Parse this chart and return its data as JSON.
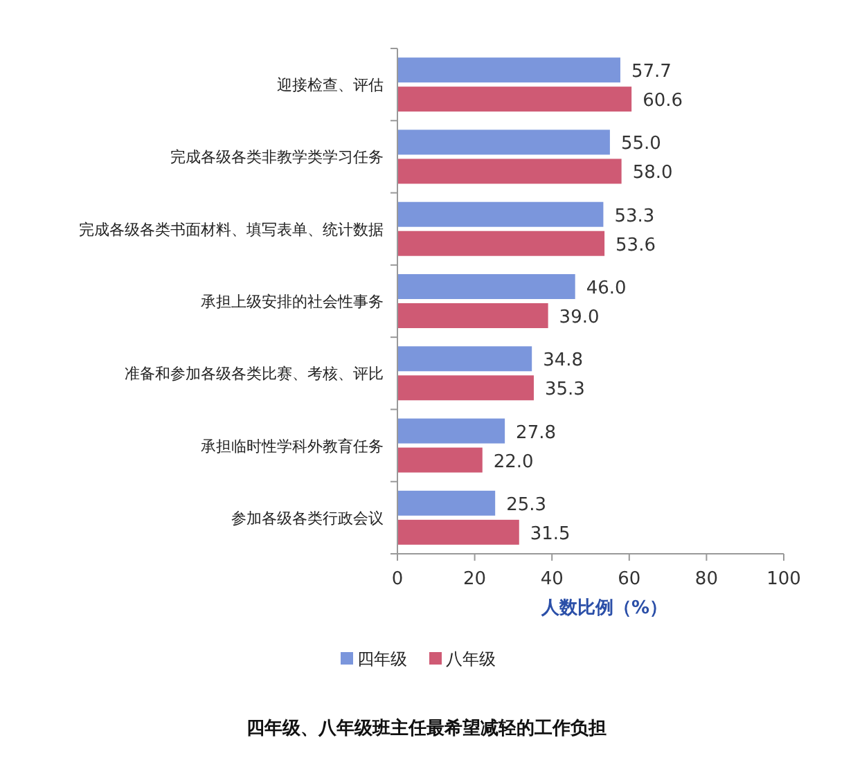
{
  "chart_data": {
    "type": "bar",
    "orientation": "horizontal",
    "title": "四年级、八年级班主任最希望减轻的工作负担",
    "xlabel": "人数比例（%）",
    "categories": [
      "迎接检查、评估",
      "完成各级各类非教学类学习任务",
      "完成各级各类书面材料、填写表单、统计数据",
      "承担上级安排的社会性事务",
      "准备和参加各级各类比赛、考核、评比",
      "承担临时性学科外教育任务",
      "参加各级各类行政会议"
    ],
    "series": [
      {
        "name": "四年级",
        "color": "#7b96dc",
        "values": [
          57.7,
          55.0,
          53.3,
          46.0,
          34.8,
          27.8,
          25.3
        ],
        "value_labels": [
          "57.7",
          "55.0",
          "53.3",
          "46.0",
          "34.8",
          "27.8",
          "25.3"
        ]
      },
      {
        "name": "八年级",
        "color": "#cf5a74",
        "values": [
          60.6,
          58.0,
          53.6,
          39.0,
          35.3,
          22.0,
          31.5
        ],
        "value_labels": [
          "60.6",
          "58.0",
          "53.6",
          "39.0",
          "35.3",
          "22.0",
          "31.5"
        ]
      }
    ],
    "xlim": [
      0,
      100
    ],
    "xticks": [
      0,
      20,
      40,
      60,
      80,
      100
    ],
    "legend": "bottom"
  }
}
